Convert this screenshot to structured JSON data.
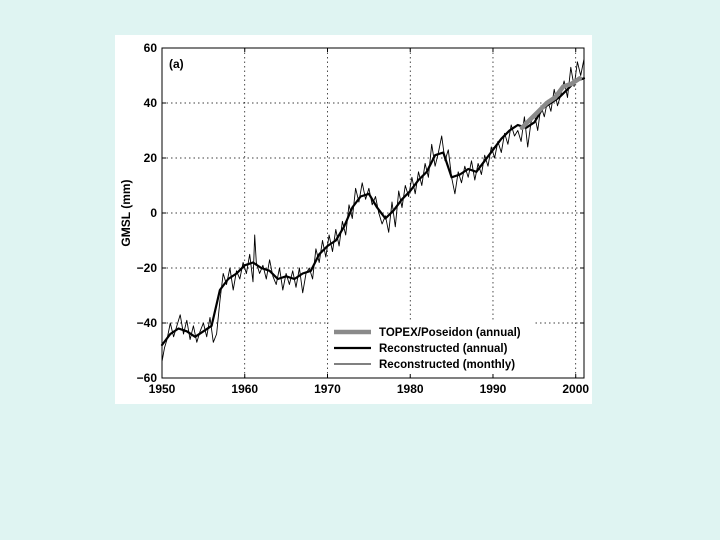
{
  "chart_data": {
    "type": "line",
    "title": "",
    "panel_label": "(a)",
    "xlabel": "",
    "ylabel": "GMSL (mm)",
    "xlim": [
      1950,
      2001
    ],
    "ylim": [
      -60,
      60
    ],
    "xticks": [
      1950,
      1960,
      1970,
      1980,
      1990,
      2000
    ],
    "yticks": [
      -60,
      -40,
      -20,
      0,
      20,
      40,
      60
    ],
    "xtick_labels": [
      "1950",
      "1960",
      "1970",
      "1980",
      "1990",
      "2000"
    ],
    "ytick_labels": [
      "−60",
      "−40",
      "−20",
      "0",
      "20",
      "40",
      "60"
    ],
    "grid": true,
    "legend_position": "bottom-right",
    "series": [
      {
        "name": "TOPEX/Poseidon (annual)",
        "color": "#8a8a8a",
        "style": "thick-gray",
        "x": [
          1993.5,
          1994.5,
          1995.5,
          1996.5,
          1997.5,
          1998.5,
          1999.5,
          2000.5
        ],
        "y": [
          31,
          34,
          37,
          40,
          42,
          46,
          47,
          49
        ]
      },
      {
        "name": "Reconstructed (annual)",
        "color": "#000000",
        "style": "thick-black",
        "x": [
          1950,
          1951,
          1952,
          1953,
          1954,
          1955,
          1956,
          1957,
          1958,
          1959,
          1960,
          1961,
          1962,
          1963,
          1964,
          1965,
          1966,
          1967,
          1968,
          1969,
          1970,
          1971,
          1972,
          1973,
          1974,
          1975,
          1976,
          1977,
          1978,
          1979,
          1980,
          1981,
          1982,
          1983,
          1984,
          1985,
          1986,
          1987,
          1988,
          1989,
          1990,
          1991,
          1992,
          1993,
          1994,
          1995,
          1996,
          1997,
          1998,
          1999,
          2000,
          2001
        ],
        "y": [
          -48,
          -44,
          -42,
          -43,
          -45,
          -43,
          -41,
          -28,
          -24,
          -22,
          -19,
          -18,
          -20,
          -21,
          -24,
          -23,
          -24,
          -22,
          -21,
          -15,
          -12,
          -10,
          -5,
          2,
          6,
          7,
          2,
          -2,
          1,
          5,
          8,
          12,
          15,
          21,
          22,
          13,
          14,
          16,
          15,
          19,
          23,
          27,
          30,
          32,
          31,
          33,
          38,
          40,
          42,
          45,
          48,
          49
        ]
      },
      {
        "name": "Reconstructed (monthly)",
        "color": "#000000",
        "style": "thin-black",
        "x": [
          1950,
          1950.3,
          1950.6,
          1951,
          1951.4,
          1951.8,
          1952.2,
          1952.6,
          1953,
          1953.4,
          1953.8,
          1954.2,
          1954.6,
          1955,
          1955.4,
          1955.8,
          1956.2,
          1956.6,
          1957,
          1957.4,
          1957.8,
          1958.2,
          1958.6,
          1959,
          1959.4,
          1959.8,
          1960.2,
          1960.6,
          1961,
          1961.2,
          1961.4,
          1961.8,
          1962.2,
          1962.6,
          1963,
          1963.4,
          1963.8,
          1964.2,
          1964.6,
          1965,
          1965.4,
          1965.8,
          1966.2,
          1966.6,
          1967,
          1967.4,
          1967.8,
          1968.2,
          1968.6,
          1969,
          1969.4,
          1969.8,
          1970.2,
          1970.6,
          1971,
          1971.4,
          1971.8,
          1972.2,
          1972.6,
          1973,
          1973.4,
          1973.8,
          1974.2,
          1974.6,
          1975,
          1975.4,
          1975.8,
          1976.2,
          1976.6,
          1977,
          1977.4,
          1977.8,
          1978.2,
          1978.6,
          1979,
          1979.4,
          1979.8,
          1980.2,
          1980.6,
          1981,
          1981.4,
          1981.8,
          1982.2,
          1982.6,
          1983,
          1983.4,
          1983.8,
          1984.2,
          1984.6,
          1985,
          1985.4,
          1985.8,
          1986.2,
          1986.6,
          1987,
          1987.4,
          1987.8,
          1988.2,
          1988.6,
          1989,
          1989.4,
          1989.8,
          1990.2,
          1990.6,
          1991,
          1991.4,
          1991.8,
          1992.2,
          1992.6,
          1993,
          1993.4,
          1993.8,
          1994.2,
          1994.6,
          1995,
          1995.4,
          1995.8,
          1996.2,
          1996.6,
          1997,
          1997.4,
          1997.8,
          1998.2,
          1998.6,
          1999,
          1999.4,
          1999.8,
          2000.2,
          2000.6,
          2001
        ],
        "y": [
          -54,
          -49,
          -46,
          -40,
          -45,
          -41,
          -37,
          -44,
          -39,
          -46,
          -41,
          -47,
          -43,
          -40,
          -45,
          -38,
          -47,
          -44,
          -32,
          -22,
          -26,
          -20,
          -28,
          -21,
          -24,
          -18,
          -22,
          -15,
          -25,
          -8,
          -18,
          -22,
          -19,
          -24,
          -17,
          -23,
          -26,
          -20,
          -28,
          -22,
          -26,
          -21,
          -27,
          -20,
          -29,
          -22,
          -20,
          -24,
          -13,
          -18,
          -10,
          -16,
          -8,
          -14,
          -6,
          -12,
          -3,
          -8,
          3,
          -2,
          9,
          4,
          11,
          5,
          9,
          3,
          6,
          0,
          -4,
          -1,
          -7,
          4,
          -5,
          8,
          2,
          10,
          6,
          13,
          7,
          15,
          10,
          18,
          13,
          25,
          17,
          22,
          28,
          19,
          23,
          13,
          7,
          15,
          11,
          17,
          13,
          19,
          12,
          18,
          14,
          21,
          17,
          24,
          20,
          26,
          22,
          29,
          25,
          32,
          28,
          30,
          26,
          35,
          24,
          33,
          36,
          30,
          39,
          35,
          41,
          37,
          45,
          39,
          43,
          48,
          42,
          53,
          46,
          55,
          50,
          56
        ]
      }
    ]
  }
}
